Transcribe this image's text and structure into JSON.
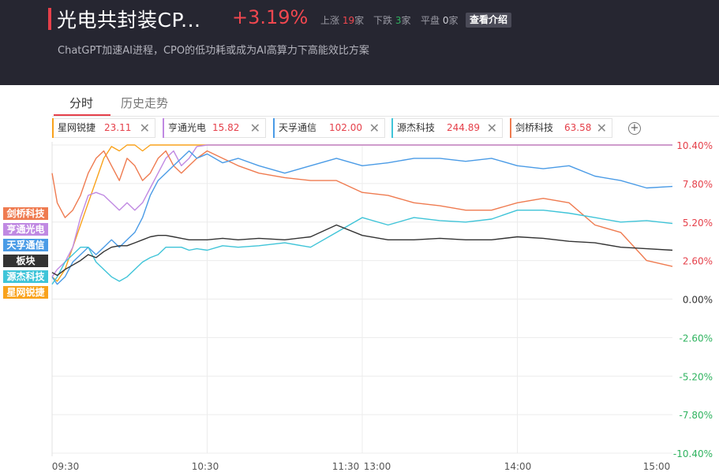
{
  "header": {
    "title": "光电共封装CP...",
    "change": "+3.19%",
    "up_label": "上涨",
    "up_count": "19",
    "down_label": "下跌",
    "down_count": "3",
    "flat_label": "平盘",
    "flat_count": "0",
    "unit": "家",
    "intro_button": "查看介绍",
    "subtitle": "ChatGPT加速AI进程，CPO的低功耗或成为AI高算力下高能效比方案"
  },
  "tabs": [
    "分时",
    "历史走势"
  ],
  "chips": [
    {
      "name": "星网锐捷",
      "price": "23.11",
      "color": "#f9a21b"
    },
    {
      "name": "亨通光电",
      "price": "15.82",
      "color": "#c089e2"
    },
    {
      "name": "天孚通信",
      "price": "102.00",
      "color": "#4a9be6"
    },
    {
      "name": "源杰科技",
      "price": "244.89",
      "color": "#3fc4d8"
    },
    {
      "name": "剑桥科技",
      "price": "63.58",
      "color": "#ef7b50"
    }
  ],
  "add_icon": "plus-circle-icon",
  "close_icon": "close-x-icon",
  "legend": [
    {
      "name": "剑桥科技",
      "color": "#ef7b50"
    },
    {
      "name": "亨通光电",
      "color": "#c089e2"
    },
    {
      "name": "天孚通信",
      "color": "#4a9be6"
    },
    {
      "name": "板块",
      "color": "#333333"
    },
    {
      "name": "源杰科技",
      "color": "#3fc4d8"
    },
    {
      "name": "星网锐捷",
      "color": "#f9a21b"
    }
  ],
  "chart_data": {
    "type": "line",
    "x_labels": [
      "09:30",
      "10:30",
      "11:30",
      "13:00",
      "14:00",
      "15:00"
    ],
    "y_ticks": [
      "10.40%",
      "7.80%",
      "5.20%",
      "2.60%",
      "0.00%",
      "-2.60%",
      "-5.20%",
      "-7.80%",
      "-10.40%"
    ],
    "ylim": [
      -10.4,
      10.4
    ],
    "grid": true,
    "series": [
      {
        "name": "星网锐捷",
        "color": "#f9a21b",
        "points": [
          [
            0,
            1.5
          ],
          [
            2,
            1.2
          ],
          [
            5,
            2.0
          ],
          [
            8,
            3.5
          ],
          [
            11,
            5.0
          ],
          [
            14,
            6.5
          ],
          [
            17,
            8.0
          ],
          [
            20,
            9.5
          ],
          [
            23,
            10.3
          ],
          [
            26,
            10.0
          ],
          [
            29,
            10.4
          ],
          [
            32,
            10.4
          ],
          [
            35,
            10.0
          ],
          [
            38,
            10.4
          ],
          [
            41,
            10.4
          ],
          [
            44,
            10.4
          ],
          [
            47,
            10.4
          ],
          [
            50,
            10.4
          ],
          [
            53,
            10.4
          ],
          [
            56,
            10.4
          ],
          [
            60,
            10.4
          ],
          [
            66,
            10.4
          ],
          [
            72,
            10.4
          ],
          [
            80,
            10.4
          ],
          [
            90,
            10.4
          ],
          [
            100,
            10.4
          ],
          [
            110,
            10.4
          ],
          [
            120,
            10.4
          ],
          [
            130,
            10.4
          ],
          [
            140,
            10.4
          ],
          [
            150,
            10.4
          ],
          [
            160,
            10.4
          ],
          [
            170,
            10.4
          ],
          [
            180,
            10.4
          ],
          [
            190,
            10.4
          ],
          [
            200,
            10.4
          ],
          [
            210,
            10.4
          ],
          [
            220,
            10.4
          ],
          [
            230,
            10.4
          ],
          [
            240,
            10.4
          ]
        ]
      },
      {
        "name": "亨通光电",
        "color": "#c089e2",
        "points": [
          [
            0,
            1.5
          ],
          [
            2,
            2.0
          ],
          [
            5,
            2.5
          ],
          [
            8,
            3.5
          ],
          [
            11,
            5.5
          ],
          [
            14,
            7.0
          ],
          [
            17,
            7.2
          ],
          [
            20,
            7.0
          ],
          [
            23,
            6.5
          ],
          [
            26,
            6.0
          ],
          [
            29,
            6.5
          ],
          [
            32,
            6.0
          ],
          [
            35,
            6.5
          ],
          [
            38,
            7.5
          ],
          [
            41,
            8.5
          ],
          [
            44,
            9.5
          ],
          [
            47,
            10.0
          ],
          [
            50,
            9.0
          ],
          [
            53,
            9.5
          ],
          [
            56,
            10.3
          ],
          [
            60,
            10.4
          ],
          [
            66,
            10.4
          ],
          [
            72,
            10.4
          ],
          [
            80,
            10.4
          ],
          [
            90,
            10.4
          ],
          [
            100,
            10.4
          ],
          [
            110,
            10.4
          ],
          [
            120,
            10.4
          ],
          [
            130,
            10.4
          ],
          [
            140,
            10.4
          ],
          [
            150,
            10.4
          ],
          [
            160,
            10.4
          ],
          [
            170,
            10.4
          ],
          [
            180,
            10.4
          ],
          [
            190,
            10.4
          ],
          [
            200,
            10.4
          ],
          [
            210,
            10.4
          ],
          [
            220,
            10.4
          ],
          [
            230,
            10.4
          ],
          [
            240,
            10.4
          ]
        ]
      },
      {
        "name": "剑桥科技",
        "color": "#ef7b50",
        "points": [
          [
            0,
            8.5
          ],
          [
            2,
            6.5
          ],
          [
            5,
            5.5
          ],
          [
            8,
            6.0
          ],
          [
            11,
            7.0
          ],
          [
            14,
            8.5
          ],
          [
            17,
            9.5
          ],
          [
            20,
            10.0
          ],
          [
            23,
            9.0
          ],
          [
            26,
            8.0
          ],
          [
            29,
            9.5
          ],
          [
            32,
            9.0
          ],
          [
            35,
            8.0
          ],
          [
            38,
            8.5
          ],
          [
            41,
            9.5
          ],
          [
            44,
            10.0
          ],
          [
            47,
            9.0
          ],
          [
            50,
            8.5
          ],
          [
            53,
            9.0
          ],
          [
            56,
            9.5
          ],
          [
            60,
            10.0
          ],
          [
            66,
            9.5
          ],
          [
            72,
            9.0
          ],
          [
            80,
            8.5
          ],
          [
            90,
            8.2
          ],
          [
            100,
            8.0
          ],
          [
            110,
            8.0
          ],
          [
            120,
            7.2
          ],
          [
            130,
            7.0
          ],
          [
            140,
            6.5
          ],
          [
            150,
            6.3
          ],
          [
            160,
            6.0
          ],
          [
            170,
            6.0
          ],
          [
            180,
            6.5
          ],
          [
            190,
            6.8
          ],
          [
            200,
            6.5
          ],
          [
            210,
            5.0
          ],
          [
            220,
            4.5
          ],
          [
            230,
            2.6
          ],
          [
            240,
            2.2
          ]
        ]
      },
      {
        "name": "天孚通信",
        "color": "#4a9be6",
        "points": [
          [
            0,
            1.5
          ],
          [
            2,
            1.0
          ],
          [
            5,
            1.5
          ],
          [
            8,
            2.5
          ],
          [
            11,
            3.0
          ],
          [
            14,
            3.5
          ],
          [
            17,
            3.0
          ],
          [
            20,
            3.5
          ],
          [
            23,
            4.0
          ],
          [
            26,
            3.5
          ],
          [
            29,
            4.0
          ],
          [
            32,
            4.5
          ],
          [
            35,
            5.5
          ],
          [
            38,
            7.0
          ],
          [
            41,
            8.0
          ],
          [
            44,
            8.5
          ],
          [
            47,
            9.0
          ],
          [
            50,
            9.5
          ],
          [
            53,
            10.0
          ],
          [
            56,
            9.5
          ],
          [
            60,
            9.8
          ],
          [
            66,
            9.2
          ],
          [
            72,
            9.5
          ],
          [
            80,
            9.0
          ],
          [
            90,
            8.5
          ],
          [
            100,
            9.0
          ],
          [
            110,
            9.5
          ],
          [
            120,
            9.0
          ],
          [
            130,
            9.2
          ],
          [
            140,
            9.5
          ],
          [
            150,
            9.5
          ],
          [
            160,
            9.3
          ],
          [
            170,
            9.5
          ],
          [
            180,
            9.0
          ],
          [
            190,
            8.8
          ],
          [
            200,
            9.0
          ],
          [
            210,
            8.3
          ],
          [
            220,
            8.0
          ],
          [
            230,
            7.5
          ],
          [
            240,
            7.6
          ]
        ]
      },
      {
        "name": "源杰科技",
        "color": "#3fc4d8",
        "points": [
          [
            0,
            1.0
          ],
          [
            2,
            1.5
          ],
          [
            5,
            2.5
          ],
          [
            8,
            3.0
          ],
          [
            11,
            3.5
          ],
          [
            14,
            3.5
          ],
          [
            17,
            2.5
          ],
          [
            20,
            2.0
          ],
          [
            23,
            1.5
          ],
          [
            26,
            1.2
          ],
          [
            29,
            1.5
          ],
          [
            32,
            2.0
          ],
          [
            35,
            2.5
          ],
          [
            38,
            2.8
          ],
          [
            41,
            3.0
          ],
          [
            44,
            3.5
          ],
          [
            47,
            3.5
          ],
          [
            50,
            3.5
          ],
          [
            53,
            3.3
          ],
          [
            56,
            3.4
          ],
          [
            60,
            3.3
          ],
          [
            66,
            3.6
          ],
          [
            72,
            3.5
          ],
          [
            80,
            3.6
          ],
          [
            90,
            3.8
          ],
          [
            100,
            3.5
          ],
          [
            110,
            4.5
          ],
          [
            120,
            5.5
          ],
          [
            130,
            5.0
          ],
          [
            140,
            5.5
          ],
          [
            150,
            5.3
          ],
          [
            160,
            5.2
          ],
          [
            170,
            5.4
          ],
          [
            180,
            6.0
          ],
          [
            190,
            6.0
          ],
          [
            200,
            5.8
          ],
          [
            210,
            5.5
          ],
          [
            220,
            5.2
          ],
          [
            230,
            5.3
          ],
          [
            240,
            5.1
          ]
        ]
      },
      {
        "name": "板块",
        "color": "#333333",
        "points": [
          [
            0,
            1.8
          ],
          [
            2,
            1.6
          ],
          [
            5,
            2.0
          ],
          [
            8,
            2.3
          ],
          [
            11,
            2.6
          ],
          [
            14,
            3.0
          ],
          [
            17,
            2.8
          ],
          [
            20,
            3.2
          ],
          [
            23,
            3.5
          ],
          [
            26,
            3.6
          ],
          [
            29,
            3.6
          ],
          [
            32,
            3.8
          ],
          [
            35,
            4.0
          ],
          [
            38,
            4.2
          ],
          [
            41,
            4.3
          ],
          [
            44,
            4.3
          ],
          [
            47,
            4.2
          ],
          [
            50,
            4.1
          ],
          [
            53,
            4.0
          ],
          [
            56,
            4.0
          ],
          [
            60,
            4.0
          ],
          [
            66,
            4.1
          ],
          [
            72,
            4.0
          ],
          [
            80,
            4.1
          ],
          [
            90,
            4.0
          ],
          [
            100,
            4.2
          ],
          [
            110,
            5.0
          ],
          [
            120,
            4.3
          ],
          [
            130,
            4.0
          ],
          [
            140,
            4.0
          ],
          [
            150,
            4.1
          ],
          [
            160,
            4.0
          ],
          [
            170,
            4.0
          ],
          [
            180,
            4.2
          ],
          [
            190,
            4.1
          ],
          [
            200,
            3.9
          ],
          [
            210,
            3.8
          ],
          [
            220,
            3.5
          ],
          [
            230,
            3.4
          ],
          [
            240,
            3.3
          ]
        ]
      }
    ]
  }
}
